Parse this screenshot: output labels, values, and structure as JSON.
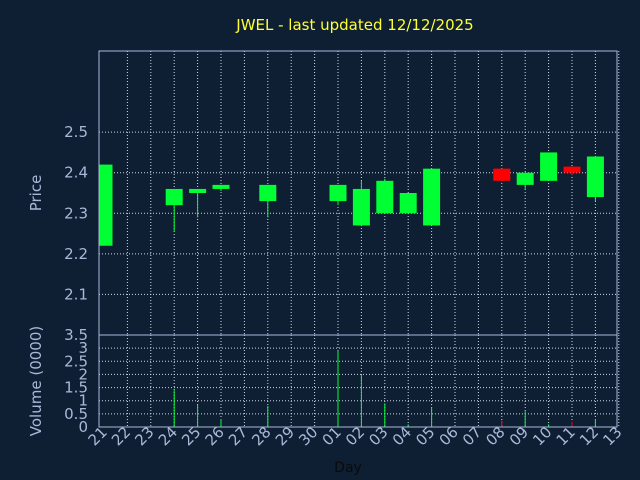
{
  "title": "JWEL - last updated 12/12/2025",
  "chart_data": {
    "type": "candlestick",
    "title": "JWEL - last updated 12/12/2025",
    "xlabel": "Day",
    "price_ylabel": "Price",
    "volume_ylabel": "Volume (0000)",
    "price_ylim": [
      2.0,
      2.7
    ],
    "price_yticks": [
      "2.1",
      "2.2",
      "2.3",
      "2.4",
      "2.5"
    ],
    "volume_ylim": [
      0,
      3.5
    ],
    "volume_yticks": [
      "0",
      "0.5",
      "1",
      "1.5",
      "2",
      "2.5",
      "3",
      "3.5"
    ],
    "x_ticks": [
      "21",
      "22",
      "23",
      "24",
      "25",
      "26",
      "27",
      "28",
      "29",
      "30",
      "01",
      "02",
      "03",
      "04",
      "05",
      "06",
      "07",
      "08",
      "09",
      "10",
      "11",
      "12",
      "13"
    ],
    "up_color": "#00ff33",
    "down_color": "#ff0000",
    "candles": [
      {
        "day": "21",
        "open": 2.22,
        "high": 2.42,
        "low": 2.22,
        "close": 2.42,
        "volume": 0.0
      },
      {
        "day": "24",
        "open": 2.32,
        "high": 2.36,
        "low": 2.255,
        "close": 2.36,
        "volume": 1.4
      },
      {
        "day": "25",
        "open": 2.35,
        "high": 2.36,
        "low": 2.29,
        "close": 2.36,
        "volume": 0.85
      },
      {
        "day": "26",
        "open": 2.36,
        "high": 2.37,
        "low": 2.355,
        "close": 2.37,
        "volume": 0.3
      },
      {
        "day": "28",
        "open": 2.33,
        "high": 2.37,
        "low": 2.29,
        "close": 2.37,
        "volume": 0.8
      },
      {
        "day": "01",
        "open": 2.33,
        "high": 2.37,
        "low": 2.32,
        "close": 2.37,
        "volume": 2.9
      },
      {
        "day": "02",
        "open": 2.27,
        "high": 2.38,
        "low": 2.27,
        "close": 2.36,
        "volume": 2.0
      },
      {
        "day": "03",
        "open": 2.3,
        "high": 2.385,
        "low": 2.3,
        "close": 2.38,
        "volume": 0.9
      },
      {
        "day": "04",
        "open": 2.3,
        "high": 2.35,
        "low": 2.3,
        "close": 2.35,
        "volume": 0.1
      },
      {
        "day": "05",
        "open": 2.27,
        "high": 2.41,
        "low": 2.27,
        "close": 2.41,
        "volume": 0.75
      },
      {
        "day": "08",
        "open": 2.41,
        "high": 2.41,
        "low": 2.38,
        "close": 2.38,
        "volume": 0.25
      },
      {
        "day": "09",
        "open": 2.37,
        "high": 2.4,
        "low": 2.36,
        "close": 2.4,
        "volume": 0.6
      },
      {
        "day": "10",
        "open": 2.38,
        "high": 2.45,
        "low": 2.38,
        "close": 2.45,
        "volume": 0.1
      },
      {
        "day": "11",
        "open": 2.415,
        "high": 2.415,
        "low": 2.395,
        "close": 2.4,
        "volume": 0.2
      },
      {
        "day": "12",
        "open": 2.34,
        "high": 2.44,
        "low": 2.33,
        "close": 2.44,
        "volume": 0.3
      }
    ]
  }
}
